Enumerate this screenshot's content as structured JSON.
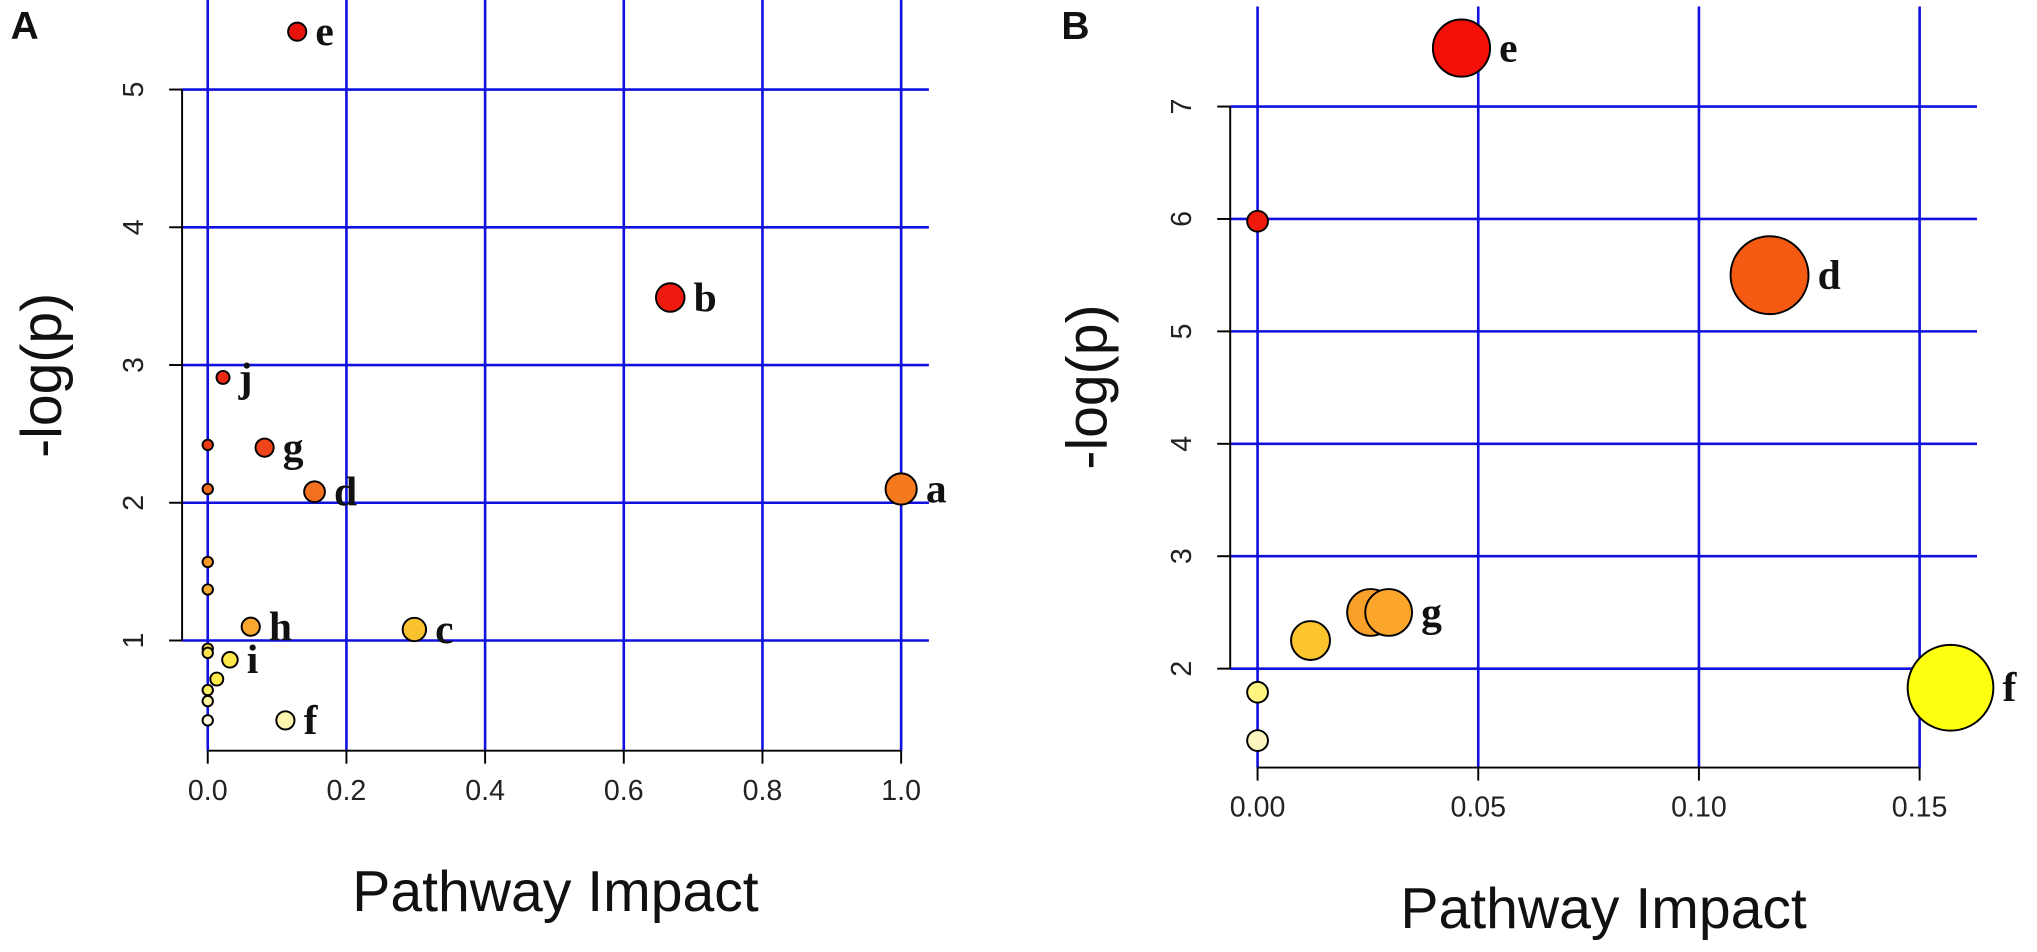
{
  "chart_data": [
    {
      "type": "scatter",
      "panel": "A",
      "xlabel": "Pathway Impact",
      "ylabel": "-log(p)",
      "x": [
        0.129,
        0.667,
        0.022,
        0.082,
        0.154,
        1.0,
        0.298,
        0.062,
        0.032,
        0.112,
        0,
        0,
        0,
        0,
        0,
        0,
        0.013,
        0,
        0,
        0
      ],
      "y": [
        5.42,
        3.49,
        2.91,
        2.4,
        2.08,
        2.1,
        1.08,
        1.1,
        0.86,
        0.42,
        2.42,
        2.1,
        1.57,
        1.37,
        0.94,
        0.91,
        0.72,
        0.64,
        0.56,
        0.42
      ],
      "sizes": [
        7,
        11,
        5,
        7,
        8,
        12,
        9,
        7,
        6,
        7,
        4,
        4,
        4,
        4,
        4,
        4,
        5,
        4,
        4,
        4
      ],
      "labels": [
        "e",
        "b",
        "j",
        "g",
        "d",
        "a",
        "c",
        "h",
        "i",
        "f",
        null,
        null,
        null,
        null,
        null,
        null,
        null,
        null,
        null,
        null
      ],
      "colors": [
        "#e8140c",
        "#ee1a10",
        "#ec2810",
        "#f0441a",
        "#f27020",
        "#f57a1e",
        "#fbc230",
        "#f8a830",
        "#fde84a",
        "#fdf5b0",
        "#f03c14",
        "#f26a1e",
        "#f69a2a",
        "#f8ae30",
        "#fcd440",
        "#fde050",
        "#fde84a",
        "#fdf060",
        "#fef5a0",
        "#fffce0"
      ],
      "xlim": [
        -0.037,
        1.04
      ],
      "ylim": [
        0.2,
        5.65
      ],
      "xticks": [
        {
          "value": 0,
          "label": "0.0"
        },
        0.2,
        0.4,
        0.6,
        0.8,
        {
          "value": 1,
          "label": "1.0"
        }
      ],
      "yticks": [
        1,
        2,
        3,
        4,
        5
      ],
      "grid": true,
      "grid_color": "#1010e0"
    },
    {
      "type": "scatter",
      "panel": "B",
      "xlabel": "Pathway Impact",
      "ylabel": "-log(p)",
      "x": [
        0.0462,
        0,
        0.116,
        0.0256,
        0.0297,
        0.012,
        0.157,
        0,
        0
      ],
      "y": [
        7.52,
        5.98,
        5.5,
        2.5,
        2.5,
        2.25,
        1.83,
        1.79,
        1.36
      ],
      "sizes": [
        22,
        8,
        30,
        18,
        18,
        15,
        33,
        8,
        8
      ],
      "labels": [
        "e",
        null,
        "d",
        null,
        "g",
        null,
        "f",
        null,
        null
      ],
      "colors": [
        "#f21008",
        "#f01a0c",
        "#f55a12",
        "#f9a028",
        "#fba52a",
        "#fcc52e",
        "#ffff10",
        "#fdf580",
        "#fdf5c0"
      ],
      "xlim": [
        -0.0062,
        0.163
      ],
      "ylim": [
        1.12,
        7.89
      ],
      "xticks": [
        {
          "value": 0,
          "label": "0.00"
        },
        {
          "value": 0.05,
          "label": "0.05"
        },
        {
          "value": 0.1,
          "label": "0.10"
        },
        {
          "value": 0.15,
          "label": "0.15"
        }
      ],
      "yticks": [
        2,
        3,
        4,
        5,
        6,
        7
      ],
      "grid": true,
      "grid_color": "#1010e0"
    }
  ]
}
